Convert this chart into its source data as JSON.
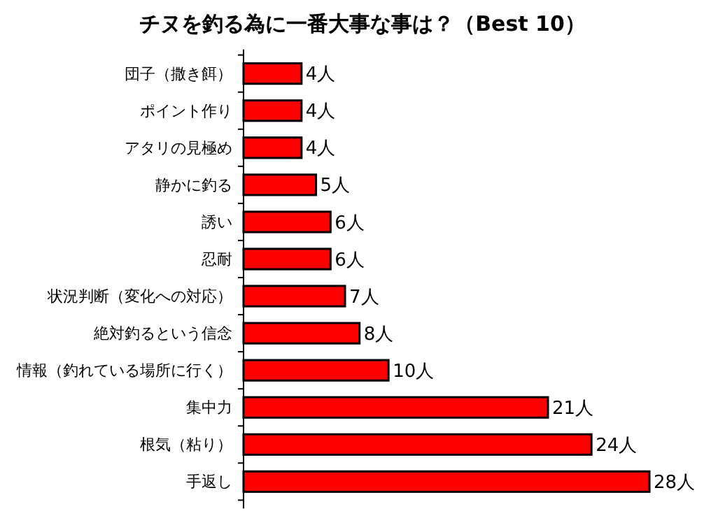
{
  "chart_data": {
    "type": "bar",
    "orientation": "horizontal",
    "title": "チヌを釣る為に一番大事な事は？（Best 10）",
    "categories": [
      "団子（撒き餌）",
      "ポイント作り",
      "アタリの見極め",
      "静かに釣る",
      "誘い",
      "忍耐",
      "状況判断（変化への対応）",
      "絶対釣るという信念",
      "情報（釣れている場所に行く）",
      "集中力",
      "根気（粘り）",
      "手返し"
    ],
    "values": [
      4,
      4,
      4,
      5,
      6,
      6,
      7,
      8,
      10,
      21,
      24,
      28
    ],
    "value_labels": [
      "4人",
      "4人",
      "4人",
      "5人",
      "6人",
      "6人",
      "7人",
      "8人",
      "10人",
      "21人",
      "24人",
      "28人"
    ],
    "color": "#ff0000"
  }
}
